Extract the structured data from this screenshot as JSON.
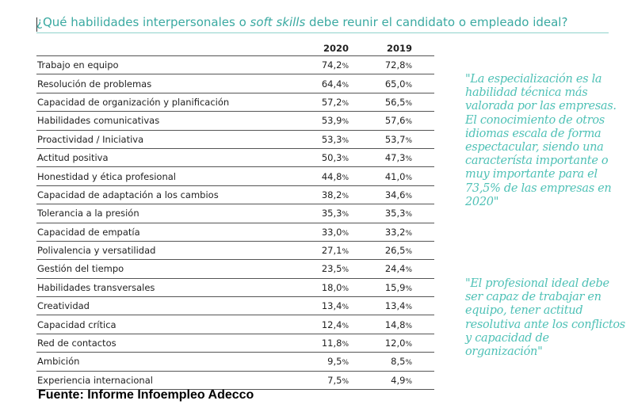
{
  "title": {
    "prefix": "¿Qué habilidades interpersonales o ",
    "emphasis": "soft skills",
    "suffix": " debe reunir el candidato o empleado ideal?"
  },
  "table": {
    "headers": [
      "",
      "2020",
      "2019"
    ],
    "rows": [
      {
        "label": "Trabajo en equipo",
        "v2020": "74,2",
        "v2019": "72,8"
      },
      {
        "label": "Resolución de problemas",
        "v2020": "64,4",
        "v2019": "65,0"
      },
      {
        "label": "Capacidad de organización y planificación",
        "v2020": "57,2",
        "v2019": "56,5"
      },
      {
        "label": "Habilidades comunicativas",
        "v2020": "53,9",
        "v2019": "57,6"
      },
      {
        "label": "Proactividad / Iniciativa",
        "v2020": "53,3",
        "v2019": "53,7"
      },
      {
        "label": "Actitud positiva",
        "v2020": "50,3",
        "v2019": "47,3"
      },
      {
        "label": "Honestidad y ética profesional",
        "v2020": "44,8",
        "v2019": "41,0"
      },
      {
        "label": "Capacidad de adaptación a los cambios",
        "v2020": "38,2",
        "v2019": "34,6"
      },
      {
        "label": "Tolerancia a la presión",
        "v2020": "35,3",
        "v2019": "35,3"
      },
      {
        "label": "Capacidad de empatía",
        "v2020": "33,0",
        "v2019": "33,2"
      },
      {
        "label": "Polivalencia y versatilidad",
        "v2020": "27,1",
        "v2019": "26,5"
      },
      {
        "label": "Gestión del tiempo",
        "v2020": "23,5",
        "v2019": "24,4"
      },
      {
        "label": "Habilidades transversales",
        "v2020": "18,0",
        "v2019": "15,9"
      },
      {
        "label": "Creatividad",
        "v2020": "13,4",
        "v2019": "13,4"
      },
      {
        "label": "Capacidad crítica",
        "v2020": "12,4",
        "v2019": "14,8"
      },
      {
        "label": "Red de contactos",
        "v2020": "11,8",
        "v2019": "12,0"
      },
      {
        "label": "Ambición",
        "v2020": "9,5",
        "v2019": "8,5"
      },
      {
        "label": "Experiencia internacional",
        "v2020": "7,5",
        "v2019": "4,9"
      }
    ],
    "unit": "%"
  },
  "quotes": [
    "\"La especialización es la habilidad técnica más valorada por las empresas. El conocimiento de otros idiomas escala de forma espectacular, siendo una característa importante o muy importante para el 73,5% de las empresas en 2020\"",
    "\"El profesional ideal debe ser capaz de trabajar en equipo, tener actitud resolutiva ante los conflictos y capacidad de organización\""
  ],
  "source": "Fuente: Informe Infoempleo Adecco",
  "colors": {
    "accent": "#3aa9a1",
    "quote": "#4fc1b6",
    "rule": "#8fd3cc"
  }
}
